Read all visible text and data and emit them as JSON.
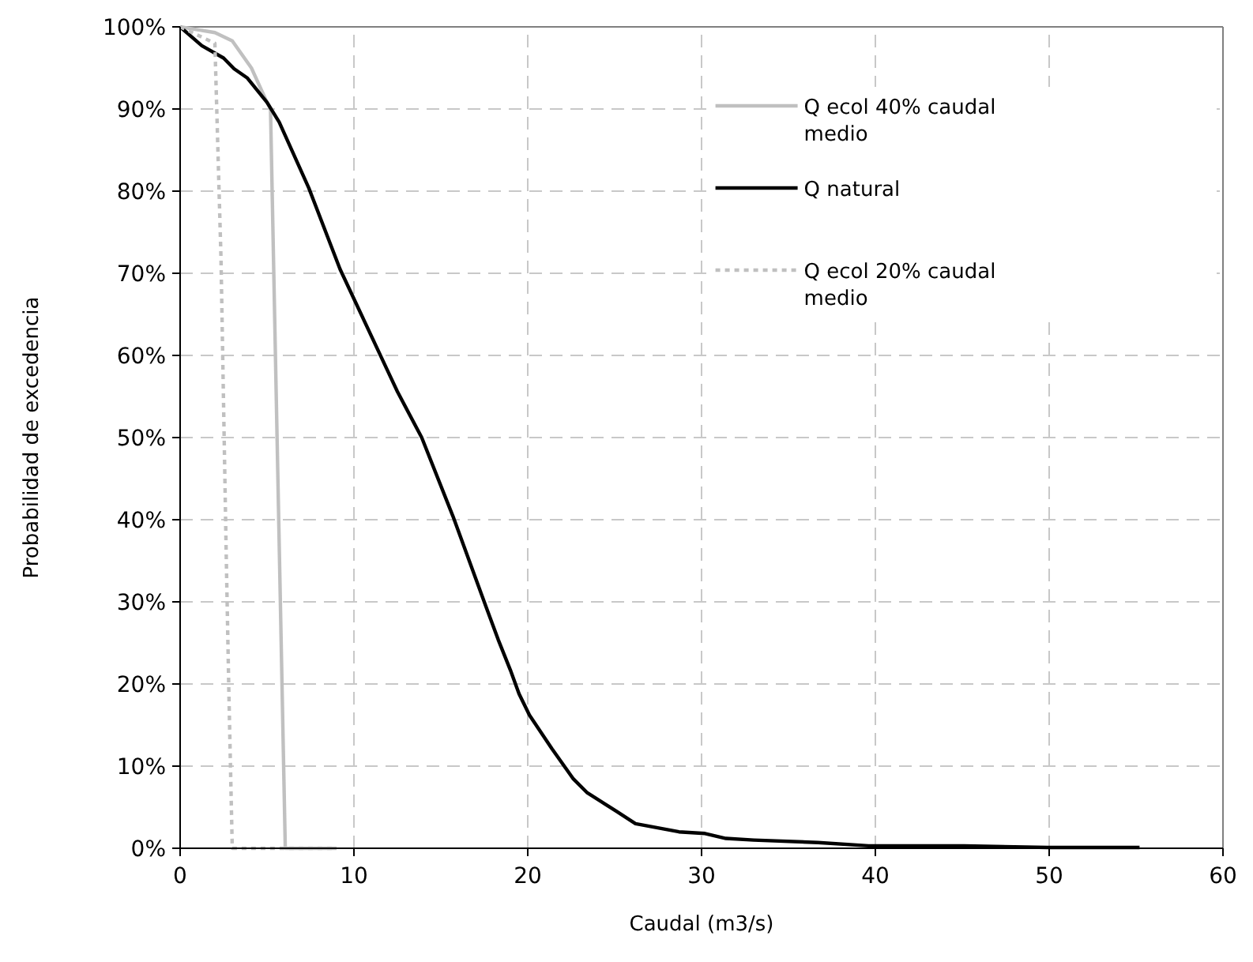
{
  "chart_data": {
    "type": "line",
    "xlabel": "Caudal (m3/s)",
    "ylabel": "Probabilidad de excedencia",
    "xlim": [
      0,
      60
    ],
    "xticks": [
      0,
      10,
      20,
      30,
      40,
      50,
      60
    ],
    "ylim": [
      0,
      100
    ],
    "yticks": [
      {
        "value": 0,
        "label": "0%"
      },
      {
        "value": 10,
        "label": "10%"
      },
      {
        "value": 20,
        "label": "20%"
      },
      {
        "value": 30,
        "label": "30%"
      },
      {
        "value": 40,
        "label": "40%"
      },
      {
        "value": 50,
        "label": "50%"
      },
      {
        "value": 60,
        "label": "60%"
      },
      {
        "value": 70,
        "label": "70%"
      },
      {
        "value": 80,
        "label": "80%"
      },
      {
        "value": 90,
        "label": "90%"
      },
      {
        "value": 100,
        "label": "100%"
      }
    ],
    "grid": true,
    "legend": "top right",
    "marker": "none",
    "series": [
      {
        "name": "Q ecol 40% caudal medio",
        "color": "#c0c0c0",
        "line_style": "solid",
        "x": [
          0,
          2.0,
          3.0,
          4.1,
          5.0,
          5.2,
          6.05,
          9
        ],
        "values": [
          100,
          99.3,
          98.3,
          95,
          90.8,
          90,
          0,
          0
        ]
      },
      {
        "name": "Q natural",
        "color": "#000000",
        "line_style": "solid",
        "x": [
          0,
          1.25,
          2.5,
          3.1,
          3.85,
          5.0,
          5.7,
          7.4,
          9.2,
          11.9,
          12.5,
          13.9,
          15.7,
          17.6,
          18.3,
          19.0,
          19.5,
          20.1,
          21.4,
          22.6,
          23.4,
          25.1,
          26.2,
          28.7,
          30.2,
          31.4,
          33,
          36.7,
          39.6,
          45.1,
          49.9,
          55.2
        ],
        "values": [
          100,
          97.7,
          96.2,
          94.9,
          93.8,
          90.8,
          88.4,
          80.4,
          70.5,
          58.3,
          55.6,
          50,
          40.4,
          29.4,
          25.4,
          21.7,
          18.8,
          16.2,
          12.1,
          8.5,
          6.8,
          4.5,
          3.0,
          2.0,
          1.8,
          1.2,
          1.0,
          0.7,
          0.3,
          0.3,
          0.1,
          0.1
        ]
      },
      {
        "name": "Q ecol 20% caudal medio",
        "color": "#c0c0c0",
        "line_style": "dotted",
        "x": [
          0,
          2.0,
          2.2,
          2.35,
          2.45,
          2.65,
          2.8,
          3.0,
          9
        ],
        "values": [
          100,
          98,
          83,
          71.9,
          60,
          36,
          19.4,
          0,
          0
        ]
      }
    ]
  }
}
